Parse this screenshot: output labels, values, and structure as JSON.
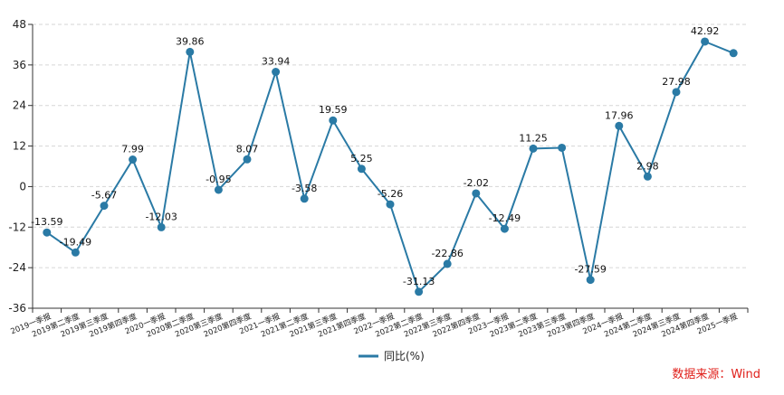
{
  "chart_data": {
    "type": "line",
    "categories": [
      "2019一季报",
      "2019第二季度",
      "2019第三季度",
      "2019第四季度",
      "2020一季报",
      "2020第二季度",
      "2020第三季度",
      "2020第四季度",
      "2021一季报",
      "2021第二季度",
      "2021第三季度",
      "2021第四季度",
      "2022一季报",
      "2022第二季度",
      "2022第三季度",
      "2022第四季度",
      "2023一季报",
      "2023第二季度",
      "2023第三季度",
      "2023第四季度",
      "2024一季报",
      "2024第二季度",
      "2024第三季度",
      "2024第四季度",
      "2025一季报"
    ],
    "series": [
      {
        "name": "同比(%)",
        "values": [
          -13.59,
          -19.49,
          -5.67,
          7.99,
          -12.03,
          39.86,
          -0.95,
          8.07,
          33.94,
          -3.58,
          19.59,
          5.25,
          -5.26,
          -31.13,
          -22.86,
          -2.02,
          -12.49,
          11.25,
          11.5,
          -27.59,
          17.96,
          2.98,
          27.98,
          42.92,
          39.5
        ],
        "labels": [
          "-13.59",
          "-19.49",
          "-5.67",
          "7.99",
          "-12.03",
          "39.86",
          "-0.95",
          "8.07",
          "33.94",
          "-3.58",
          "19.59",
          "5.25",
          "-5.26",
          "-31.13",
          "-22.86",
          "-2.02",
          "-12.49",
          "11.25",
          "",
          "-27.59",
          "17.96",
          "2.98",
          "27.98",
          "42.92",
          ""
        ],
        "color": "#2a7aa5"
      }
    ],
    "yticks": [
      "48",
      "36",
      "24",
      "12",
      "0",
      "-12",
      "-24",
      "-36"
    ],
    "ylim": [
      -36,
      48
    ],
    "grid": true,
    "legend_position": "bottom-center"
  },
  "source": "数据来源：Wind"
}
